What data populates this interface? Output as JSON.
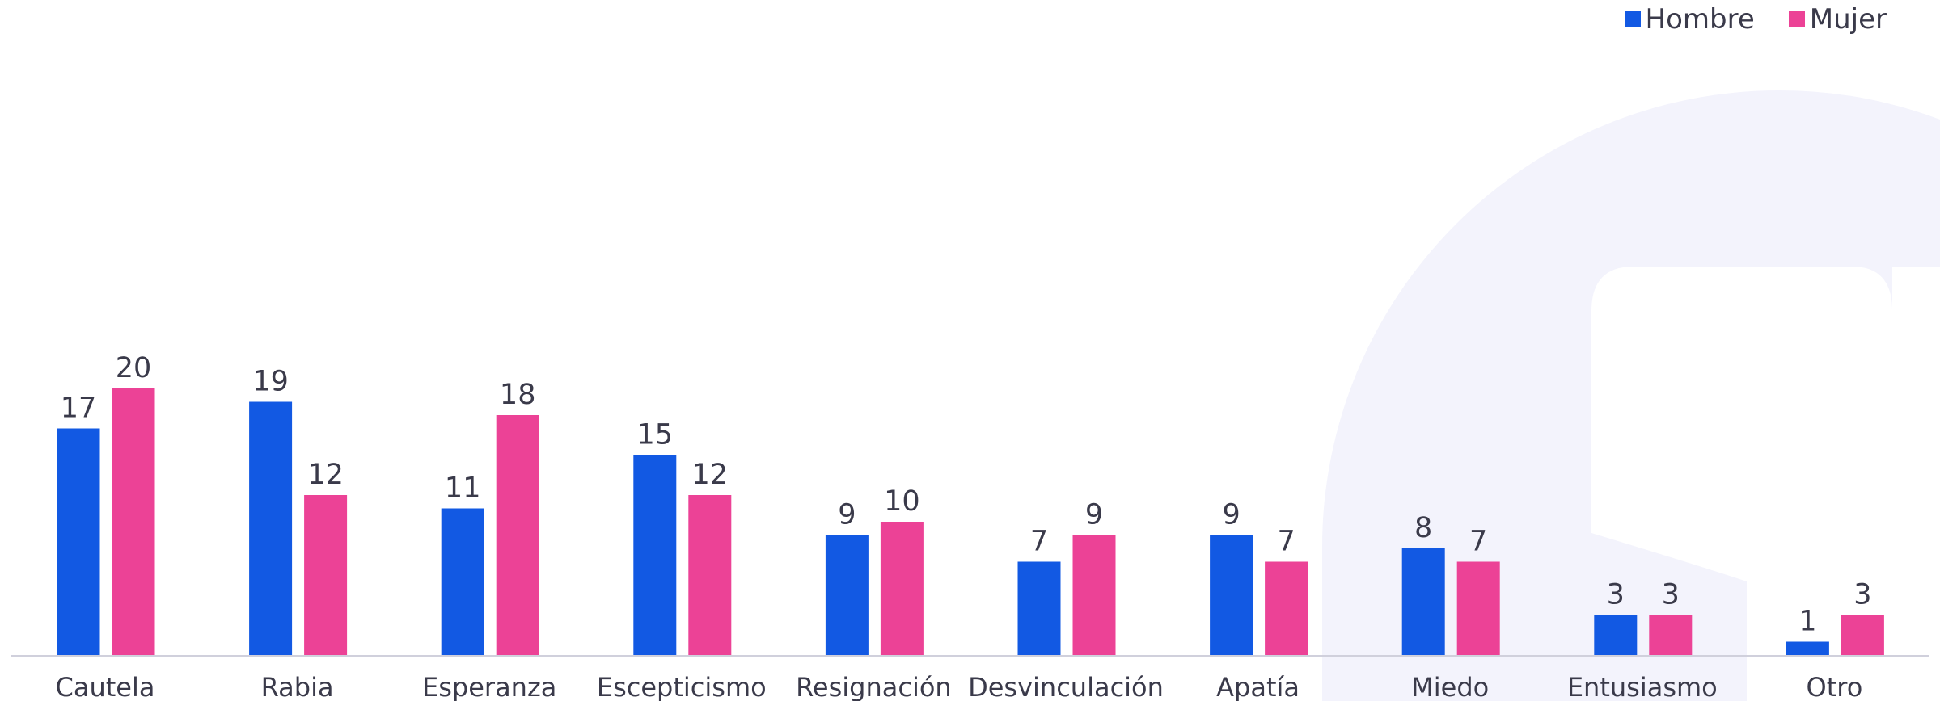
{
  "chart_data": {
    "type": "bar",
    "title": "",
    "xlabel": "",
    "ylabel": "",
    "categories": [
      "Cautela",
      "Rabia",
      "Esperanza",
      "Escepticismo",
      "Resignación",
      "Desvinculación",
      "Apatía",
      "Miedo",
      "Entusiasmo",
      "Otro"
    ],
    "series": [
      {
        "name": "Hombre",
        "color": "#1259e3",
        "values": [
          17,
          19,
          11,
          15,
          9,
          7,
          9,
          8,
          3,
          1
        ]
      },
      {
        "name": "Mujer",
        "color": "#ec4296",
        "values": [
          20,
          12,
          18,
          12,
          10,
          9,
          7,
          7,
          3,
          3
        ]
      }
    ],
    "ylim": [
      0,
      50
    ],
    "grid": false,
    "legend_position": "top-right",
    "data_labels": true
  },
  "colors": {
    "background_shape": "#f3f3fc",
    "axis_line": "#d0d0dc",
    "label_text": "#3a3a4a"
  }
}
